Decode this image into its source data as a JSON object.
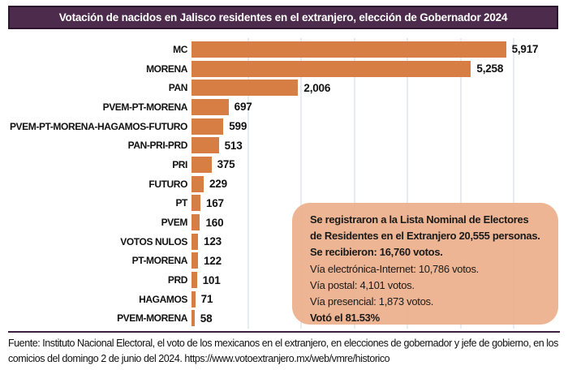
{
  "chart_data": {
    "type": "bar",
    "orientation": "horizontal",
    "title": "Votación de nacidos en Jalisco residentes en el extranjero, elección de Gobernador 2024",
    "categories": [
      "MC",
      "MORENA",
      "PAN",
      "PVEM-PT-MORENA",
      "PVEM-PT-MORENA-HAGAMOS-FUTURO",
      "PAN-PRI-PRD",
      "PRI",
      "FUTURO",
      "PT",
      "PVEM",
      "VOTOS NULOS",
      "PT-MORENA",
      "PRD",
      "HAGAMOS",
      "PVEM-MORENA"
    ],
    "values": [
      5917,
      5258,
      2006,
      697,
      599,
      513,
      375,
      229,
      167,
      160,
      123,
      122,
      101,
      71,
      58
    ],
    "value_labels": [
      "5,917",
      "5,258",
      "2,006",
      "697",
      "599",
      "513",
      "375",
      "229",
      "167",
      "160",
      "123",
      "122",
      "101",
      "71",
      "58"
    ],
    "xlim": [
      0,
      6000
    ],
    "gridline_interval": 1000,
    "grid": true,
    "legend": false,
    "xlabel": "",
    "ylabel": ""
  },
  "annotation": {
    "lines": [
      {
        "text": "Se registraron a la Lista Nominal de Electores",
        "bold": true
      },
      {
        "text": "de Residentes en el Extranjero 20,555 personas.",
        "bold": true
      },
      {
        "text": "Se recibieron: 16,760 votos.",
        "bold": true
      },
      {
        "text": "Vía electrónica-Internet: 10,786 votos.",
        "bold": false
      },
      {
        "text": "Vía postal: 4,101 votos.",
        "bold": false
      },
      {
        "text": "Vía presencial: 1,873 votos.",
        "bold": false
      },
      {
        "text": "Votó el 81.53%",
        "bold": true
      }
    ]
  },
  "footer": {
    "text": "Fuente: Instituto Nacional Electoral, el voto de los mexicanos en el extranjero, en elecciones de gobernador y jefe de gobierno, en los comicios del domingo 2 de junio del 2024. https://www.votoextranjero.mx/web/vmre/historico"
  },
  "colors": {
    "title_bg": "#4d2b4d",
    "title_border": "#2c152d",
    "title_text": "#ffffff",
    "bar": "#d67e43",
    "annotation_bg": "#ecb18d",
    "gridline": "#e8ecf2",
    "divider": "#3d2040",
    "text": "#111111"
  }
}
